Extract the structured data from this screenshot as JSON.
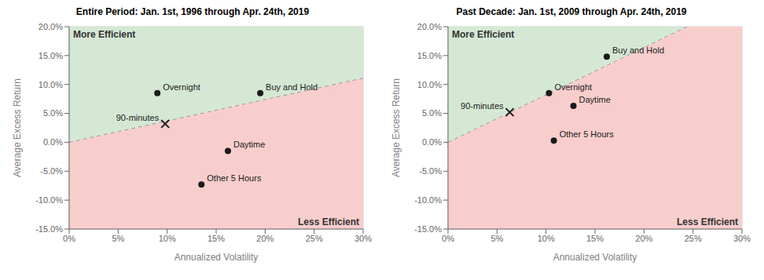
{
  "chart_data": [
    {
      "type": "scatter",
      "title": "Entire Period: Jan. 1st, 1996 through Apr. 24th, 2019",
      "x_label": "Annualized Volatility",
      "y_label": "Average Excess Return",
      "x": [
        0.09,
        0.195,
        0.162,
        0.135,
        0.098
      ],
      "values": [
        0.085,
        0.085,
        -0.015,
        -0.073,
        0.032
      ],
      "point_labels": [
        "Overnight",
        "Buy and Hold",
        "Daytime",
        "Other 5 Hours",
        "90-minutes"
      ],
      "markers": [
        "circle",
        "circle",
        "circle",
        "circle",
        "x"
      ],
      "color": "#1a1a1a",
      "line": {
        "x": [
          0.0,
          0.3
        ],
        "values": [
          0.0,
          0.111
        ],
        "color": "#999999",
        "line_style": "dashed"
      },
      "regions": {
        "above_color": "#d5e8d4",
        "below_color": "#f8cecc"
      },
      "annotations": [
        "More Efficient",
        "Less Efficient"
      ],
      "xlim": [
        0.0,
        0.3
      ],
      "ylim": [
        -0.15,
        0.2
      ],
      "xticks": [
        {
          "value": 0.0,
          "label": "0%"
        },
        {
          "value": 0.05,
          "label": "5%"
        },
        {
          "value": 0.1,
          "label": "10%"
        },
        {
          "value": 0.15,
          "label": "15%"
        },
        {
          "value": 0.2,
          "label": "20%"
        },
        {
          "value": 0.25,
          "label": "25%"
        },
        {
          "value": 0.3,
          "label": "30%"
        }
      ],
      "yticks": [
        {
          "value": -0.15,
          "label": "-15.0%"
        },
        {
          "value": -0.1,
          "label": "-10.0%"
        },
        {
          "value": -0.05,
          "label": "-5.0%"
        },
        {
          "value": 0.0,
          "label": "0.0%"
        },
        {
          "value": 0.05,
          "label": "5.0%"
        },
        {
          "value": 0.1,
          "label": "10.0%"
        },
        {
          "value": 0.15,
          "label": "15.0%"
        },
        {
          "value": 0.2,
          "label": "20.0%"
        }
      ],
      "grid": true
    },
    {
      "type": "scatter",
      "title": "Past Decade: Jan. 1st, 2009 through Apr. 24th, 2019",
      "x_label": "Annualized Volatility",
      "y_label": "Average Excess Return",
      "x": [
        0.103,
        0.162,
        0.128,
        0.108,
        0.063
      ],
      "values": [
        0.085,
        0.148,
        0.063,
        0.003,
        0.052
      ],
      "point_labels": [
        "Overnight",
        "Buy and Hold",
        "Daytime",
        "Other 5 Hours",
        "90-minutes"
      ],
      "markers": [
        "circle",
        "circle",
        "circle",
        "circle",
        "x"
      ],
      "color": "#1a1a1a",
      "line": {
        "x": [
          0.0,
          0.24390243902439024
        ],
        "values": [
          0.0,
          0.2
        ],
        "color": "#999999",
        "line_style": "dashed"
      },
      "regions": {
        "above_color": "#d5e8d4",
        "below_color": "#f8cecc"
      },
      "annotations": [
        "More Efficient",
        "Less Efficient"
      ],
      "xlim": [
        0.0,
        0.3
      ],
      "ylim": [
        -0.15,
        0.2
      ],
      "xticks": [
        {
          "value": 0.0,
          "label": "0%"
        },
        {
          "value": 0.05,
          "label": "5%"
        },
        {
          "value": 0.1,
          "label": "10%"
        },
        {
          "value": 0.15,
          "label": "15%"
        },
        {
          "value": 0.2,
          "label": "20%"
        },
        {
          "value": 0.25,
          "label": "25%"
        },
        {
          "value": 0.3,
          "label": "30%"
        }
      ],
      "yticks": [
        {
          "value": -0.15,
          "label": "-15.0%"
        },
        {
          "value": -0.1,
          "label": "-10.0%"
        },
        {
          "value": -0.05,
          "label": "-5.0%"
        },
        {
          "value": 0.0,
          "label": "0.0%"
        },
        {
          "value": 0.05,
          "label": "5.0%"
        },
        {
          "value": 0.1,
          "label": "10.0%"
        },
        {
          "value": 0.15,
          "label": "15.0%"
        },
        {
          "value": 0.2,
          "label": "20.0%"
        }
      ],
      "grid": true
    }
  ]
}
